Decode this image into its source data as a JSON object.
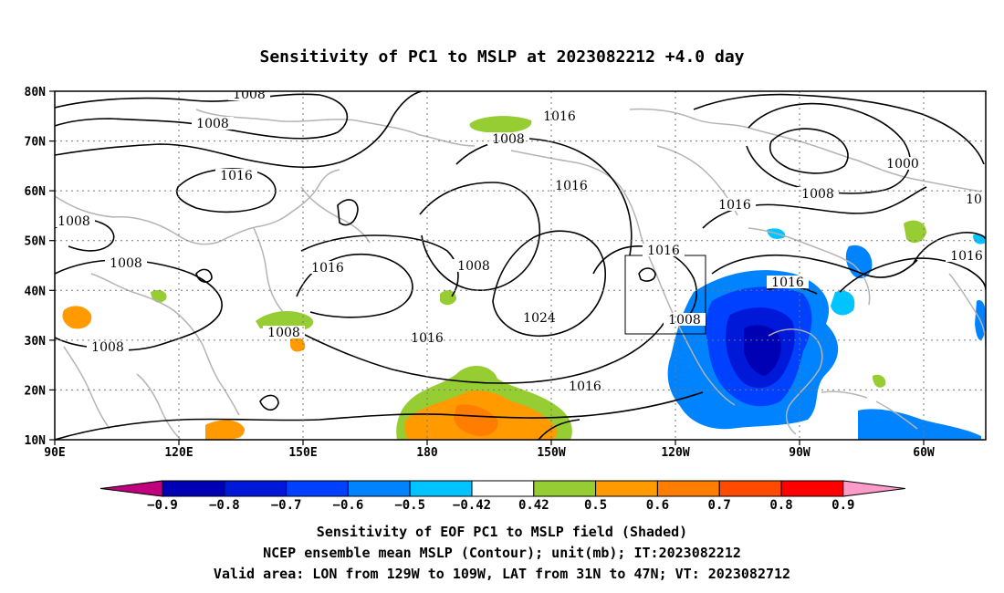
{
  "title": "Sensitivity of PC1 to MSLP at 2023082212 +4.0 day",
  "axes": {
    "lat_labels": [
      "80N",
      "70N",
      "60N",
      "50N",
      "40N",
      "30N",
      "20N",
      "10N"
    ],
    "lon_labels": [
      "90E",
      "120E",
      "150E",
      "180",
      "150W",
      "120W",
      "90W",
      "60W"
    ]
  },
  "contour_labels": [
    "1008",
    "1008",
    "1016",
    "1008",
    "1008",
    "1008",
    "1016",
    "1008",
    "1016",
    "1008",
    "1016",
    "1008",
    "1024",
    "1016",
    "1016",
    "1016",
    "1008",
    "1016",
    "1008",
    "1000",
    "10",
    "1016",
    "1016"
  ],
  "colorbar": {
    "labels": [
      "-0.9",
      "-0.8",
      "-0.7",
      "-0.6",
      "-0.5",
      "-0.42",
      "0.42",
      "0.5",
      "0.6",
      "0.7",
      "0.8",
      "0.9"
    ],
    "colors": [
      "#c0007c",
      "#0000b4",
      "#0019d8",
      "#0041ff",
      "#0083ff",
      "#00c4ff",
      "#ffffff",
      "#96cd32",
      "#ff9b00",
      "#ff7d00",
      "#ff4b00",
      "#ff0000",
      "#ff9bc8"
    ]
  },
  "caption": [
    "Sensitivity of EOF PC1 to MSLP field (Shaded)",
    "NCEP ensemble mean MSLP (Contour); unit(mb); IT:2023082212",
    "Valid area: LON from 129W to 109W, LAT from 31N to 47N; VT: 2023082712"
  ]
}
